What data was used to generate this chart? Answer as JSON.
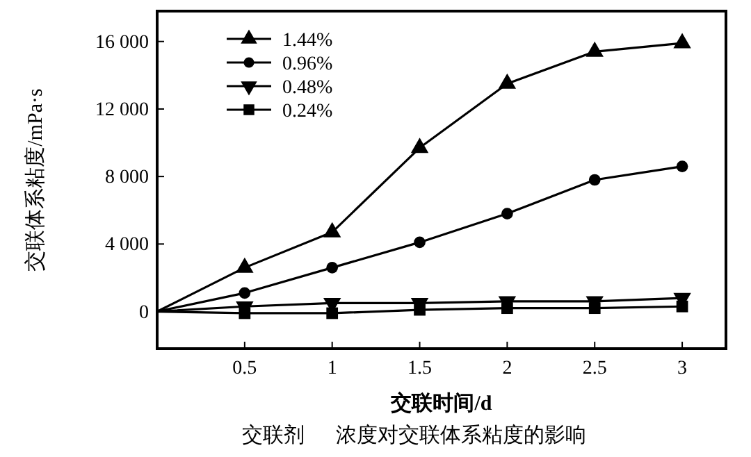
{
  "chart_data": {
    "type": "line",
    "xlabel": "交联时间/d",
    "ylabel": "交联体系粘度/mPa·s",
    "x": [
      0,
      0.5,
      1,
      1.5,
      2,
      2.5,
      3
    ],
    "series": [
      {
        "name": "1.44%",
        "color": "#000000",
        "marker": "triangle",
        "values": [
          0,
          2600,
          4700,
          9700,
          13500,
          15400,
          15900
        ]
      },
      {
        "name": "0.96%",
        "color": "#000000",
        "marker": "circle",
        "values": [
          0,
          1100,
          2600,
          4100,
          5800,
          7800,
          8600
        ]
      },
      {
        "name": "0.48%",
        "color": "#000000",
        "marker": "triangle_down",
        "values": [
          0,
          300,
          500,
          500,
          600,
          600,
          800
        ]
      },
      {
        "name": "0.24%",
        "color": "#000000",
        "marker": "square",
        "values": [
          0,
          -100,
          -100,
          100,
          200,
          200,
          300
        ]
      }
    ],
    "xlim": [
      0,
      3.25
    ],
    "ylim": [
      -2200,
      17800
    ],
    "xticks": [
      0.5,
      1,
      1.5,
      2,
      2.5,
      3
    ],
    "yticks": [
      0,
      {
        "value": 4000,
        "label": "4 000"
      },
      {
        "value": 8000,
        "label": "8 000"
      },
      {
        "value": 12000,
        "label": "12 000"
      },
      {
        "value": 16000,
        "label": "16 000"
      }
    ],
    "grid": false,
    "legend": "top left",
    "line_style": "solid",
    "annotations": [
      "交联剂      浓度对交联体系粘度的影响"
    ]
  }
}
